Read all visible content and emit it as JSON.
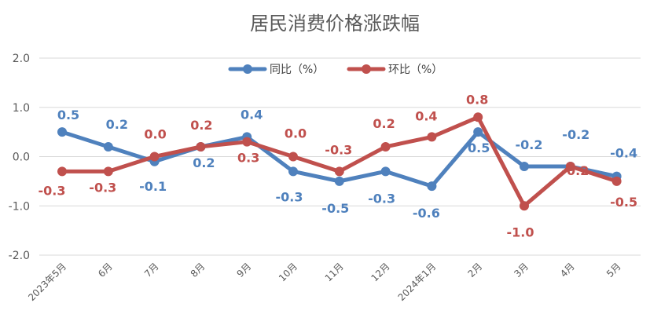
{
  "chart_data": {
    "type": "line",
    "title": "居民消费价格涨跌幅",
    "xlabel": "",
    "ylabel": "",
    "ylim": [
      -2.0,
      2.0
    ],
    "yticks": [
      "2.0",
      "1.0",
      "0.0",
      "-1.0",
      "-2.0"
    ],
    "categories": [
      "2023年5月",
      "6月",
      "7月",
      "8月",
      "9月",
      "10月",
      "11月",
      "12月",
      "2024年1月",
      "2月",
      "3月",
      "4月",
      "5月"
    ],
    "series": [
      {
        "name": "同比（%）",
        "color": "#4f81bd",
        "values": [
          0.5,
          0.2,
          -0.1,
          0.2,
          0.4,
          -0.3,
          -0.5,
          -0.3,
          -0.6,
          0.5,
          -0.2,
          -0.2,
          -0.4
        ],
        "labels": [
          "0.5",
          "0.2",
          "-0.1",
          "0.2",
          "0.4",
          "-0.3",
          "-0.5",
          "-0.3",
          "-0.6",
          "0.5",
          "-0.2",
          "-0.2",
          "-0.4"
        ]
      },
      {
        "name": "环比（%）",
        "color": "#c0504d",
        "values": [
          -0.3,
          -0.3,
          0.0,
          0.2,
          0.3,
          0.0,
          -0.3,
          0.2,
          0.4,
          0.8,
          -1.0,
          -0.2,
          -0.5
        ],
        "labels": [
          "-0.3",
          "-0.3",
          "0.0",
          "0.2",
          "0.3",
          "0.0",
          "-0.3",
          "0.2",
          "0.4",
          "0.8",
          "-1.0",
          "-0.2",
          "-0.5"
        ]
      }
    ],
    "grid": true,
    "legend_position": "top"
  }
}
